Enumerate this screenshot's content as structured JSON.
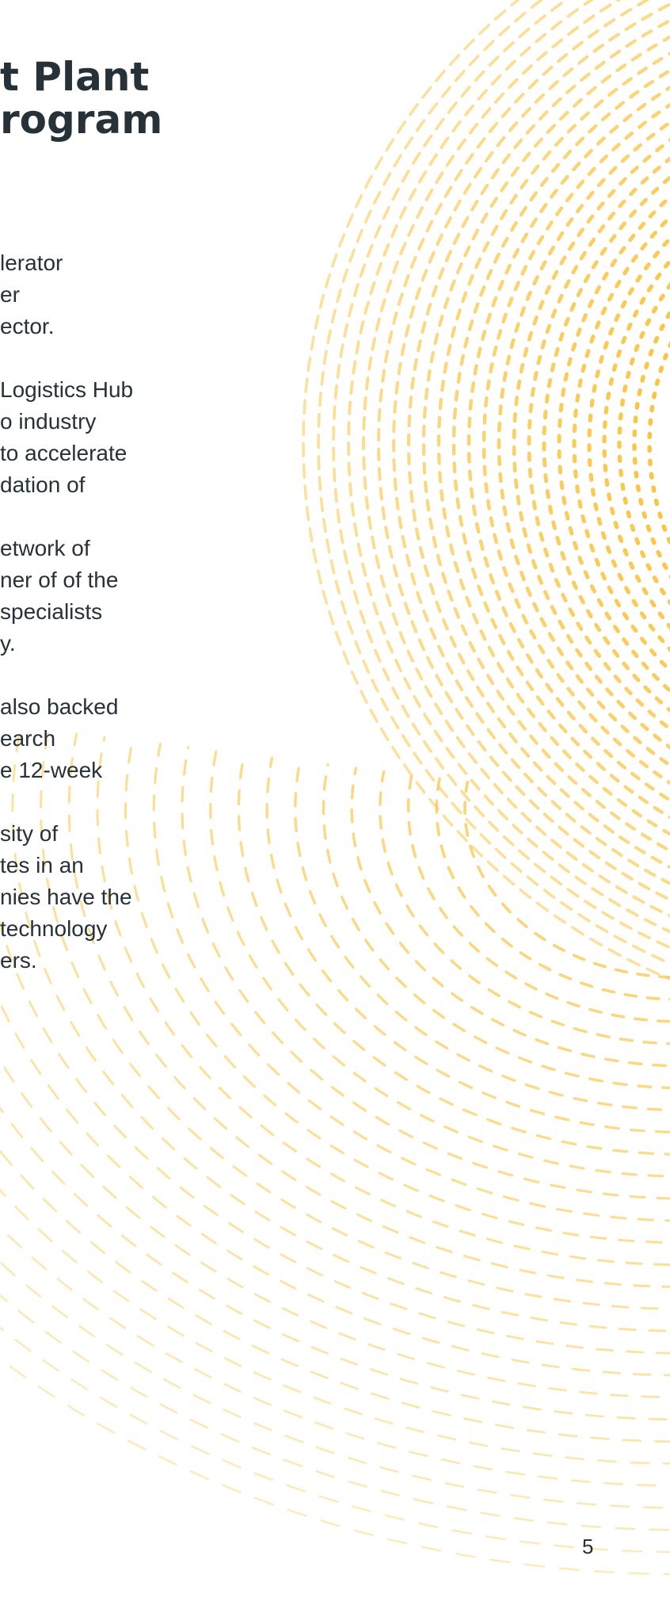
{
  "title": {
    "line1": "t Plant",
    "line2": "rogram"
  },
  "paragraphs": [
    {
      "lines": [
        "lerator",
        "er",
        "ector."
      ]
    },
    {
      "lines": [
        " Logistics Hub",
        "o industry",
        "to accelerate",
        "dation of"
      ]
    },
    {
      "lines": [
        "etwork of",
        "ner of of the",
        "specialists",
        "y."
      ]
    },
    {
      "lines": [
        " also backed",
        "earch",
        "e 12-week"
      ]
    },
    {
      "lines": [
        "sity of",
        "tes in an",
        "nies have the",
        " technology",
        "ers."
      ]
    }
  ],
  "page_number": "5",
  "colors": {
    "text": "#273238",
    "pattern": "#F9C23C"
  }
}
